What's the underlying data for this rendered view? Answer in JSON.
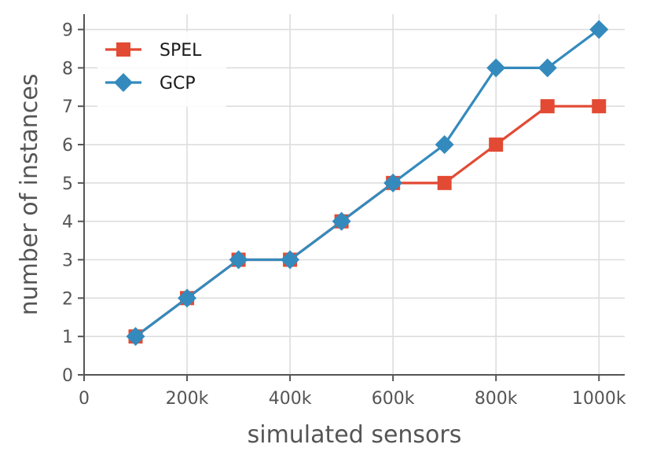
{
  "chart_data": {
    "type": "line",
    "title": "",
    "xlabel": "simulated sensors",
    "ylabel": "number of instances",
    "xlim": [
      0,
      1050000
    ],
    "ylim": [
      0,
      9.4
    ],
    "x_ticks": [
      0,
      200000,
      400000,
      600000,
      800000,
      1000000
    ],
    "x_tick_labels": [
      "0",
      "200k",
      "400k",
      "600k",
      "800k",
      "1000k"
    ],
    "y_ticks": [
      0,
      1,
      2,
      3,
      4,
      5,
      6,
      7,
      8,
      9
    ],
    "y_tick_labels": [
      "0",
      "1",
      "2",
      "3",
      "4",
      "5",
      "6",
      "7",
      "8",
      "9"
    ],
    "grid": true,
    "legend_position": "top-left",
    "x": [
      100000,
      200000,
      300000,
      400000,
      500000,
      600000,
      700000,
      800000,
      900000,
      1000000
    ],
    "series": [
      {
        "name": "SPEL",
        "color": "#e24a33",
        "marker": "square",
        "values": [
          1,
          2,
          3,
          3,
          4,
          5,
          5,
          6,
          7,
          7
        ]
      },
      {
        "name": "GCP",
        "color": "#348abd",
        "marker": "diamond",
        "values": [
          1,
          2,
          3,
          3,
          4,
          5,
          6,
          8,
          8,
          9
        ]
      }
    ]
  }
}
